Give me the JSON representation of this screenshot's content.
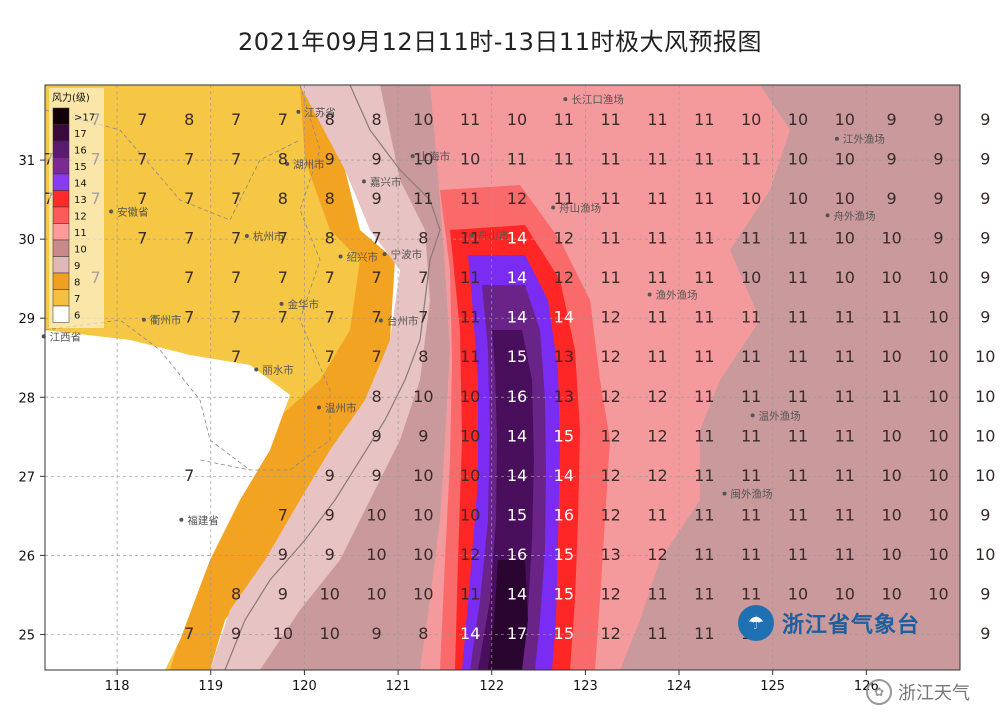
{
  "title": "2021年09月12日11时-13日11时极大风预报图",
  "legend": {
    "heading": "风力(级)",
    "levels": [
      ">17",
      "17",
      "16",
      "15",
      "14",
      "13",
      "12",
      "11",
      "10",
      "9",
      "8",
      "7",
      "6"
    ],
    "colors": [
      "#120008",
      "#3a0a3a",
      "#5a1a70",
      "#7a2a90",
      "#8a3af0",
      "#ff2a2a",
      "#ff5a5a",
      "#ff9a9a",
      "#c88a8a",
      "#e0b8b8",
      "#f0a020",
      "#f5c040",
      "#ffffff"
    ]
  },
  "axes": {
    "lon_ticks": [
      "118",
      "119",
      "120",
      "121",
      "122",
      "123",
      "124",
      "125",
      "126"
    ],
    "lat_ticks": [
      "31",
      "30",
      "29",
      "28",
      "27",
      "26",
      "25"
    ]
  },
  "grid": {
    "lon_start": 117.27,
    "lon_step": 0.5,
    "lat_values": [
      31.5,
      31.0,
      30.5,
      30.0,
      29.5,
      29.0,
      28.5,
      28.0,
      27.5,
      27.0,
      26.5,
      26.0,
      25.5,
      25.0
    ],
    "rows": [
      [
        "",
        "7",
        "7",
        "8",
        "7",
        "7",
        "8",
        "8",
        "10",
        "11",
        "10",
        "11",
        "11",
        "11",
        "11",
        "10",
        "10",
        "10",
        "9",
        "9",
        "9"
      ],
      [
        "7",
        "7",
        "7",
        "7",
        "7",
        "8",
        "9",
        "9",
        "10",
        "10",
        "11",
        "11",
        "11",
        "11",
        "11",
        "11",
        "10",
        "10",
        "9",
        "9",
        "9"
      ],
      [
        "7",
        "7",
        "7",
        "7",
        "7",
        "8",
        "8",
        "9",
        "11",
        "11",
        "12",
        "11",
        "11",
        "11",
        "11",
        "10",
        "10",
        "10",
        "9",
        "9",
        "9"
      ],
      [
        "",
        "",
        "7",
        "7",
        "7",
        "7",
        "8",
        "7",
        "8",
        "11",
        "14",
        "12",
        "11",
        "11",
        "11",
        "11",
        "11",
        "10",
        "10",
        "9",
        "9"
      ],
      [
        "",
        "7",
        "",
        "7",
        "7",
        "7",
        "7",
        "7",
        "7",
        "11",
        "14",
        "12",
        "11",
        "11",
        "11",
        "10",
        "11",
        "10",
        "10",
        "10",
        "9"
      ],
      [
        "",
        "",
        "",
        "7",
        "7",
        "7",
        "7",
        "7",
        "7",
        "11",
        "14",
        "14",
        "12",
        "11",
        "11",
        "11",
        "11",
        "11",
        "11",
        "10",
        "9"
      ],
      [
        "",
        "",
        "",
        "",
        "7",
        "",
        "7",
        "7",
        "8",
        "11",
        "15",
        "13",
        "12",
        "11",
        "11",
        "11",
        "11",
        "11",
        "10",
        "10",
        "10"
      ],
      [
        "",
        "",
        "",
        "",
        "",
        "",
        "",
        "8",
        "10",
        "10",
        "16",
        "13",
        "12",
        "12",
        "11",
        "11",
        "11",
        "11",
        "11",
        "10",
        "10"
      ],
      [
        "",
        "",
        "",
        "",
        "",
        "",
        "",
        "9",
        "9",
        "10",
        "14",
        "15",
        "12",
        "12",
        "11",
        "11",
        "11",
        "11",
        "10",
        "10",
        "10"
      ],
      [
        "",
        "",
        "",
        "7",
        "",
        "",
        "9",
        "9",
        "10",
        "10",
        "14",
        "14",
        "12",
        "12",
        "11",
        "11",
        "11",
        "11",
        "10",
        "10",
        "10"
      ],
      [
        "",
        "",
        "",
        "",
        "",
        "7",
        "9",
        "10",
        "10",
        "10",
        "15",
        "16",
        "12",
        "11",
        "11",
        "11",
        "11",
        "11",
        "10",
        "10",
        "9"
      ],
      [
        "",
        "",
        "",
        "",
        "",
        "9",
        "9",
        "10",
        "10",
        "12",
        "16",
        "15",
        "13",
        "12",
        "11",
        "11",
        "11",
        "11",
        "10",
        "10",
        "10"
      ],
      [
        "",
        "",
        "",
        "",
        "8",
        "9",
        "10",
        "10",
        "10",
        "11",
        "14",
        "15",
        "12",
        "11",
        "11",
        "11",
        "10",
        "10",
        "10",
        "10",
        "9"
      ],
      [
        "",
        "",
        "",
        "7",
        "9",
        "10",
        "10",
        "9",
        "8",
        "14",
        "17",
        "15",
        "12",
        "11",
        "11",
        "11",
        "",
        "",
        "",
        "",
        "9"
      ]
    ]
  },
  "places": [
    {
      "name": "江苏省",
      "lon": 120.0,
      "lat": 31.56
    },
    {
      "name": "长江口渔场",
      "lon": 122.85,
      "lat": 31.72
    },
    {
      "name": "上海市",
      "lon": 121.22,
      "lat": 31.0
    },
    {
      "name": "湖州市",
      "lon": 119.88,
      "lat": 30.9
    },
    {
      "name": "嘉兴市",
      "lon": 120.7,
      "lat": 30.68
    },
    {
      "name": "安徽省",
      "lon": 118.0,
      "lat": 30.3
    },
    {
      "name": "江外渔场",
      "lon": 125.75,
      "lat": 31.22
    },
    {
      "name": "舟山渔场",
      "lon": 122.72,
      "lat": 30.35
    },
    {
      "name": "舟外渔场",
      "lon": 125.65,
      "lat": 30.25
    },
    {
      "name": "杭州市",
      "lon": 119.45,
      "lat": 29.99
    },
    {
      "name": "舟山市",
      "lon": 121.85,
      "lat": 30.0
    },
    {
      "name": "绍兴市",
      "lon": 120.45,
      "lat": 29.73
    },
    {
      "name": "宁波市",
      "lon": 120.92,
      "lat": 29.76
    },
    {
      "name": "渔外渔场",
      "lon": 123.75,
      "lat": 29.25
    },
    {
      "name": "金华市",
      "lon": 119.82,
      "lat": 29.13
    },
    {
      "name": "衢州市",
      "lon": 118.35,
      "lat": 28.93
    },
    {
      "name": "台州市",
      "lon": 120.88,
      "lat": 28.92
    },
    {
      "name": "江西省",
      "lon": 117.28,
      "lat": 28.72
    },
    {
      "name": "丽水市",
      "lon": 119.55,
      "lat": 28.3
    },
    {
      "name": "温州市",
      "lon": 120.22,
      "lat": 27.82
    },
    {
      "name": "温外渔场",
      "lon": 124.85,
      "lat": 27.72
    },
    {
      "name": "闽外渔场",
      "lon": 124.55,
      "lat": 26.73
    },
    {
      "name": "福建省",
      "lon": 118.75,
      "lat": 26.4
    }
  ],
  "credit": {
    "logo_text": "浙江省气象台"
  },
  "watermark": {
    "text": "浙江天气"
  }
}
